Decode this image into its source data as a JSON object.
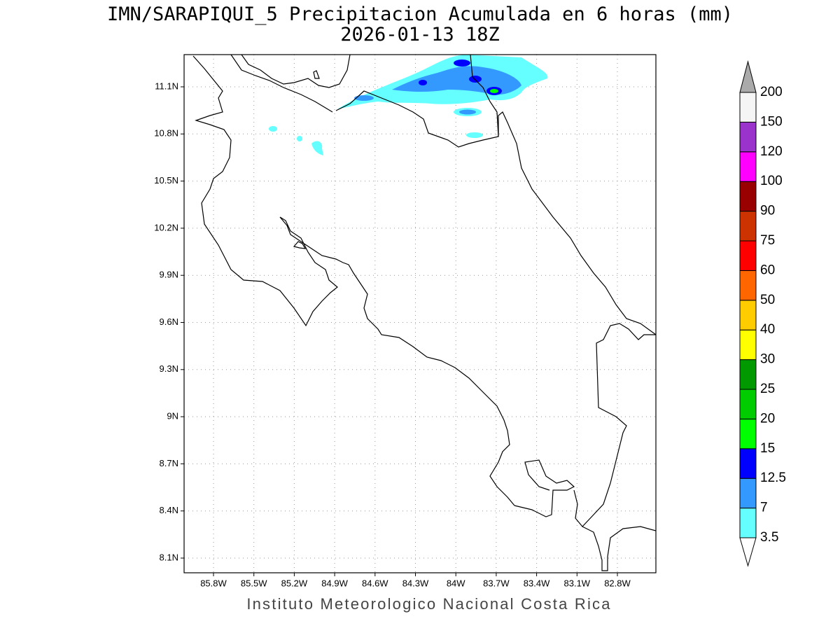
{
  "title": "IMN/SARAPIQUI_5 Precipitacion Acumulada en 6 horas (mm)",
  "subtitle": "2026-01-13 18Z",
  "lon_ticks": [
    "85.8W",
    "85.5W",
    "85.2W",
    "84.9W",
    "84.6W",
    "84.3W",
    "84W",
    "83.7W",
    "83.4W",
    "83.1W",
    "82.8W"
  ],
  "lat_ticks": [
    "11.1N",
    "10.8N",
    "10.5N",
    "10.2N",
    "9.9N",
    "9.6N",
    "9.3N",
    "9N",
    "8.7N",
    "8.4N",
    "8.1N"
  ],
  "colorbar": {
    "levels": [
      3.5,
      7,
      12.5,
      15,
      20,
      25,
      30,
      40,
      50,
      60,
      75,
      90,
      100,
      120,
      150,
      200
    ],
    "colors": [
      "#66ffff",
      "#3399ff",
      "#0000ff",
      "#00ff00",
      "#00cc00",
      "#009900",
      "#ffff00",
      "#ffcc00",
      "#ff6600",
      "#ff0000",
      "#cc3300",
      "#990000",
      "#ff00ff",
      "#9933cc",
      "#f5f5f5"
    ],
    "under_color": "#ffffff",
    "over_color": "#aaaaaa"
  },
  "footer": "Instituto Meteorologico Nacional Costa Rica"
}
